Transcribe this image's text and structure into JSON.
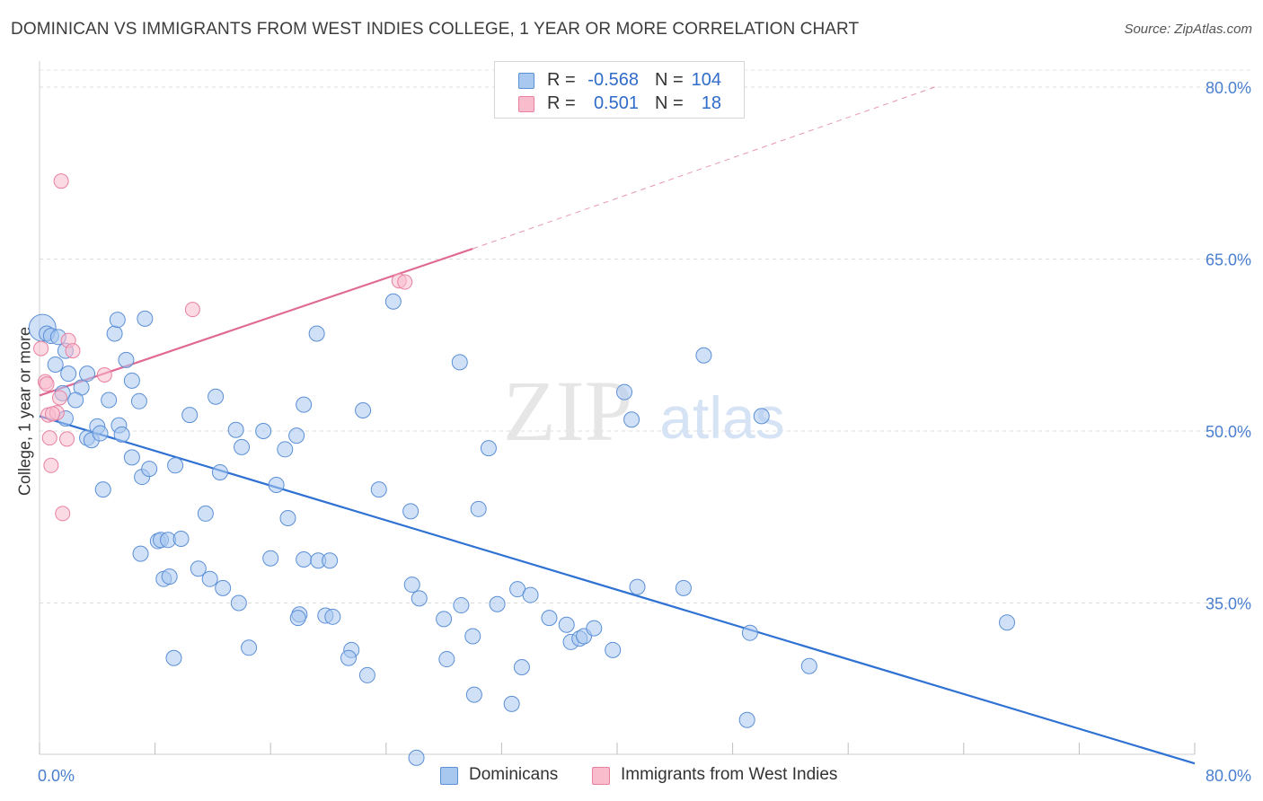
{
  "title": "DOMINICAN VS IMMIGRANTS FROM WEST INDIES COLLEGE, 1 YEAR OR MORE CORRELATION CHART",
  "source": "Source: ZipAtlas.com",
  "watermark": {
    "zip": "ZIP",
    "atlas": "atlas"
  },
  "legend_top": {
    "rows": [
      {
        "r_label": "R =",
        "r_value": "-0.568",
        "n_label": "N =",
        "n_value": "104",
        "color": "#a9c8f0",
        "border": "#5b8fd6"
      },
      {
        "r_label": "R =",
        "r_value": "0.501",
        "n_label": "N =",
        "n_value": "18",
        "color": "#f8bccd",
        "border": "#e880a0"
      }
    ]
  },
  "legend_bottom": {
    "items": [
      {
        "label": "Dominicans",
        "color": "#a9c8f0",
        "border": "#5b8fd6"
      },
      {
        "label": "Immigrants from West Indies",
        "color": "#f8bccd",
        "border": "#e880a0"
      }
    ]
  },
  "chart_data": {
    "type": "scatter",
    "title": "DOMINICAN VS IMMIGRANTS FROM WEST INDIES COLLEGE, 1 YEAR OR MORE CORRELATION CHART",
    "xlabel": "",
    "ylabel": "College, 1 year or more",
    "xlim": [
      0,
      80
    ],
    "ylim": [
      20,
      82
    ],
    "x_tick_labels": [
      "0.0%",
      "80.0%"
    ],
    "y_ticks": [
      35,
      50,
      65,
      80
    ],
    "y_tick_labels": [
      "35.0%",
      "50.0%",
      "65.0%",
      "80.0%"
    ],
    "grid": true,
    "colors": {
      "blue": "#5b8fd6",
      "blue_fill": "#a9c8f0",
      "blue_line": "#2f72d4",
      "pink": "#e880a0",
      "pink_fill": "#f8bccd",
      "pink_line": "#e06a93"
    },
    "series": [
      {
        "name": "Dominicans",
        "R": -0.568,
        "N": 104,
        "trend": {
          "x": [
            0,
            80
          ],
          "y": [
            51.3,
            21.0
          ]
        },
        "points": [
          [
            0.2,
            59.0
          ],
          [
            0.5,
            58.5
          ],
          [
            0.8,
            58.3
          ],
          [
            1.3,
            58.2
          ],
          [
            1.1,
            55.8
          ],
          [
            1.8,
            57.0
          ],
          [
            2.0,
            55.0
          ],
          [
            1.6,
            53.3
          ],
          [
            2.9,
            53.8
          ],
          [
            2.5,
            52.7
          ],
          [
            1.8,
            51.1
          ],
          [
            3.3,
            49.4
          ],
          [
            3.6,
            49.2
          ],
          [
            4.0,
            50.4
          ],
          [
            4.2,
            49.8
          ],
          [
            4.8,
            52.7
          ],
          [
            5.5,
            50.5
          ],
          [
            5.7,
            49.7
          ],
          [
            5.2,
            58.5
          ],
          [
            5.4,
            59.7
          ],
          [
            6.0,
            56.2
          ],
          [
            6.4,
            54.4
          ],
          [
            6.9,
            52.6
          ],
          [
            7.1,
            46.0
          ],
          [
            7.6,
            46.7
          ],
          [
            7.3,
            59.8
          ],
          [
            8.2,
            40.4
          ],
          [
            8.4,
            40.5
          ],
          [
            8.9,
            40.5
          ],
          [
            7.0,
            39.3
          ],
          [
            8.6,
            37.1
          ],
          [
            9.0,
            37.3
          ],
          [
            9.8,
            40.6
          ],
          [
            9.4,
            47.0
          ],
          [
            10.4,
            51.4
          ],
          [
            11.5,
            42.8
          ],
          [
            11.8,
            37.1
          ],
          [
            12.2,
            53.0
          ],
          [
            12.5,
            46.4
          ],
          [
            11.0,
            38.0
          ],
          [
            12.7,
            36.3
          ],
          [
            14.0,
            48.6
          ],
          [
            13.6,
            50.1
          ],
          [
            13.8,
            35.0
          ],
          [
            15.5,
            50.0
          ],
          [
            16.4,
            45.3
          ],
          [
            17.0,
            48.4
          ],
          [
            17.2,
            42.4
          ],
          [
            17.8,
            49.6
          ],
          [
            18.3,
            52.3
          ],
          [
            19.2,
            58.5
          ],
          [
            18.3,
            38.8
          ],
          [
            19.3,
            38.7
          ],
          [
            20.1,
            38.7
          ],
          [
            16.0,
            38.9
          ],
          [
            18.0,
            34.0
          ],
          [
            19.8,
            33.9
          ],
          [
            20.3,
            33.8
          ],
          [
            21.6,
            30.9
          ],
          [
            22.4,
            51.8
          ],
          [
            23.5,
            44.9
          ],
          [
            24.5,
            61.3
          ],
          [
            25.7,
            43.0
          ],
          [
            26.3,
            35.4
          ],
          [
            25.8,
            36.6
          ],
          [
            28.0,
            33.6
          ],
          [
            29.1,
            56.0
          ],
          [
            29.2,
            34.8
          ],
          [
            30.0,
            32.1
          ],
          [
            30.4,
            43.2
          ],
          [
            31.1,
            48.5
          ],
          [
            31.7,
            34.9
          ],
          [
            32.7,
            26.2
          ],
          [
            33.4,
            29.4
          ],
          [
            33.1,
            36.2
          ],
          [
            34.0,
            35.7
          ],
          [
            35.3,
            33.7
          ],
          [
            36.5,
            33.1
          ],
          [
            36.8,
            31.6
          ],
          [
            37.4,
            31.9
          ],
          [
            37.7,
            32.1
          ],
          [
            38.4,
            32.8
          ],
          [
            39.7,
            30.9
          ],
          [
            40.5,
            53.4
          ],
          [
            41.0,
            51.0
          ],
          [
            41.4,
            36.4
          ],
          [
            44.6,
            36.3
          ],
          [
            46.0,
            56.6
          ],
          [
            50.0,
            51.3
          ],
          [
            49.2,
            32.4
          ],
          [
            49.0,
            24.8
          ],
          [
            53.3,
            29.5
          ],
          [
            67.0,
            33.3
          ],
          [
            30.1,
            27.0
          ],
          [
            28.2,
            30.1
          ],
          [
            22.7,
            28.7
          ],
          [
            21.4,
            30.2
          ],
          [
            17.9,
            33.7
          ],
          [
            14.5,
            31.1
          ],
          [
            9.3,
            30.2
          ],
          [
            26.1,
            21.5
          ],
          [
            3.3,
            55.0
          ],
          [
            6.4,
            47.7
          ],
          [
            4.4,
            44.9
          ]
        ]
      },
      {
        "name": "Immigrants from West Indies",
        "R": 0.501,
        "N": 18,
        "trend": {
          "x": [
            0,
            30
          ],
          "y": [
            53.1,
            65.9
          ]
        },
        "trend_dashed": {
          "x": [
            30,
            62
          ],
          "y": [
            65.9,
            80.0
          ]
        },
        "points": [
          [
            0.1,
            57.2
          ],
          [
            0.4,
            54.3
          ],
          [
            0.6,
            51.4
          ],
          [
            0.7,
            49.4
          ],
          [
            0.8,
            47.0
          ],
          [
            1.2,
            51.6
          ],
          [
            1.4,
            52.9
          ],
          [
            1.5,
            71.8
          ],
          [
            1.6,
            42.8
          ],
          [
            1.9,
            49.3
          ],
          [
            2.0,
            57.9
          ],
          [
            2.3,
            57.0
          ],
          [
            4.5,
            54.9
          ],
          [
            10.6,
            60.6
          ],
          [
            24.9,
            63.1
          ],
          [
            25.3,
            63.0
          ],
          [
            0.9,
            51.5
          ],
          [
            0.5,
            54.1
          ]
        ]
      }
    ]
  }
}
